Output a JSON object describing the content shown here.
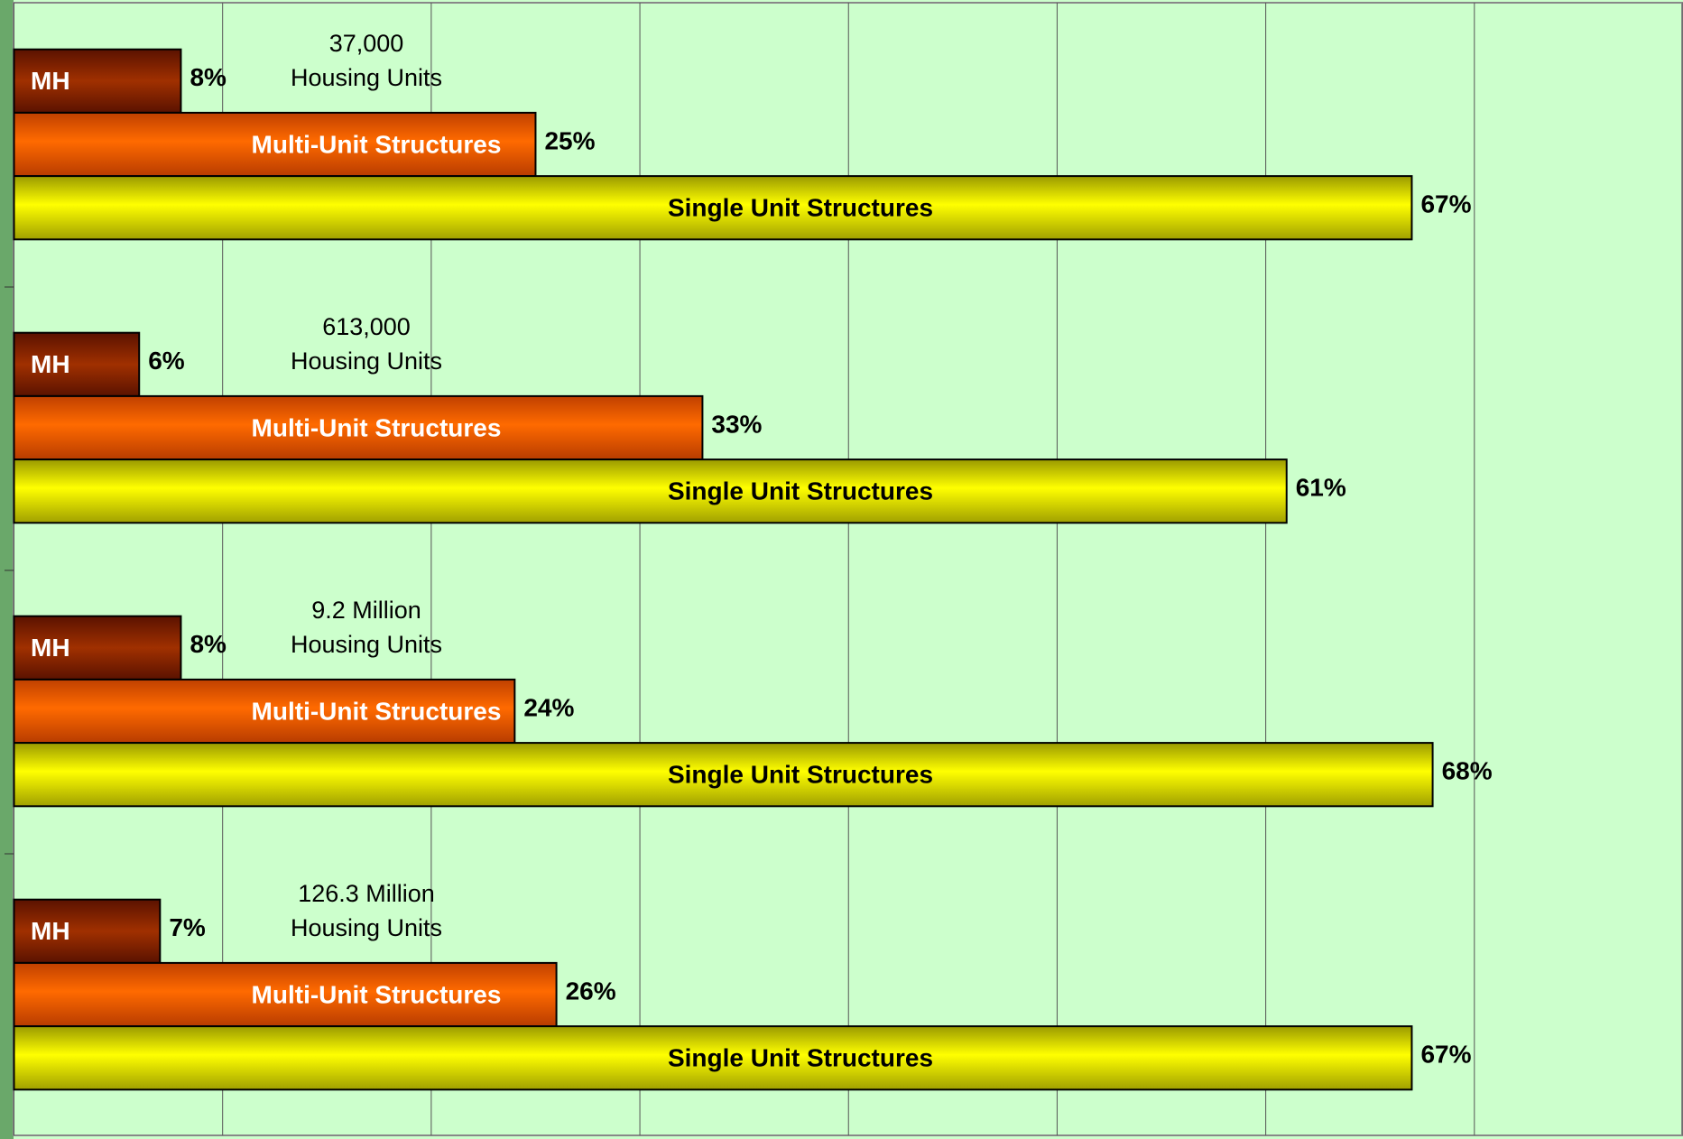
{
  "chart_data": {
    "type": "bar",
    "orientation": "horizontal",
    "categories": [
      "37,000\nHousing Units",
      "613,000\nHousing Units",
      "9.2 Million\nHousing Units",
      "126.3 Million\nHousing Units"
    ],
    "series": [
      {
        "name": "MH",
        "color": "#8b2500",
        "values": [
          8,
          6,
          8,
          7
        ],
        "value_labels": [
          "8%",
          "6%",
          "8%",
          "7%"
        ]
      },
      {
        "name": "Multi-Unit Structures",
        "color": "#ff6600",
        "values": [
          25,
          33,
          24,
          26
        ],
        "value_labels": [
          "25%",
          "33%",
          "24%",
          "26%"
        ]
      },
      {
        "name": "Single Unit Structures",
        "color": "#ffff00",
        "values": [
          67,
          61,
          68,
          67
        ],
        "value_labels": [
          "67%",
          "61%",
          "68%",
          "67%"
        ]
      }
    ],
    "xlim": [
      0,
      80
    ],
    "xticks": [
      0,
      10,
      20,
      30,
      40,
      50,
      60,
      70,
      80
    ],
    "grid": true
  }
}
